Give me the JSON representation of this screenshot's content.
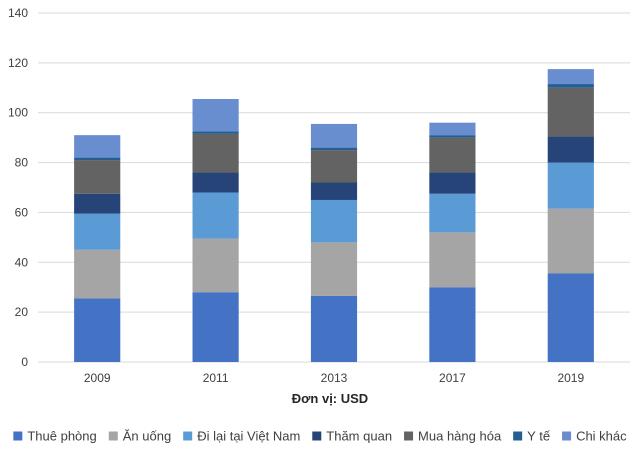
{
  "chart_data": {
    "type": "bar",
    "stacked": true,
    "title": "",
    "xlabel": "Đơn vị: USD",
    "ylabel": "",
    "ylim": [
      0,
      140
    ],
    "yticks": [
      0,
      20,
      40,
      60,
      80,
      100,
      120,
      140
    ],
    "grid": true,
    "legend": "bottom",
    "categories": [
      "2009",
      "2011",
      "2013",
      "2017",
      "2019"
    ],
    "series": [
      {
        "name": "Thuê phòng",
        "color": "#4472C4",
        "values": [
          25.5,
          28,
          26.5,
          30,
          35.5
        ]
      },
      {
        "name": "Ăn uống",
        "color": "#A5A5A5",
        "values": [
          19.5,
          21.5,
          21.5,
          22,
          26
        ]
      },
      {
        "name": "Đi lại tại Việt Nam",
        "color": "#5B9BD5",
        "values": [
          14.5,
          18.5,
          17,
          15.5,
          18.5
        ]
      },
      {
        "name": "Thăm quan",
        "color": "#264478",
        "values": [
          8,
          8,
          7,
          8.5,
          10.5
        ]
      },
      {
        "name": "Mua hàng hóa",
        "color": "#636363",
        "values": [
          13.5,
          15.5,
          13,
          14,
          19.5
        ]
      },
      {
        "name": "Y tế",
        "color": "#255E91",
        "values": [
          1,
          1,
          1,
          1,
          1.5
        ]
      },
      {
        "name": "Chi khác",
        "color": "#698ED0",
        "values": [
          9,
          13,
          9.5,
          5,
          6
        ]
      }
    ]
  }
}
